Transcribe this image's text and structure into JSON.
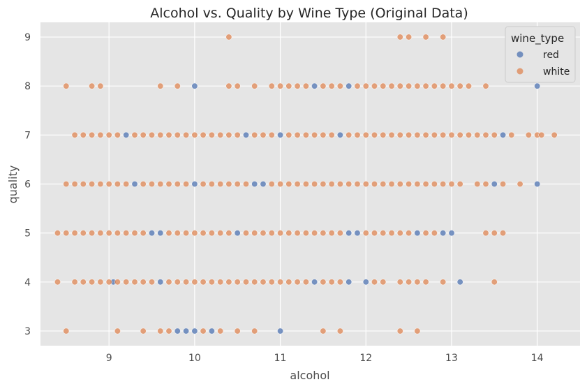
{
  "chart_data": {
    "type": "scatter",
    "title": "Alcohol vs. Quality by Wine Type (Original Data)",
    "xlabel": "alcohol",
    "ylabel": "quality",
    "xlim": [
      8.2,
      14.5
    ],
    "ylim": [
      2.7,
      9.3
    ],
    "x_ticks": [
      "9",
      "10",
      "11",
      "12",
      "13",
      "14"
    ],
    "y_ticks": [
      "3",
      "4",
      "5",
      "6",
      "7",
      "8",
      "9"
    ],
    "grid": true,
    "legend": {
      "title": "wine_type",
      "position": "top-right"
    },
    "series": [
      {
        "name": "red",
        "color": "#4c72b0",
        "points": [
          [
            9.9,
            3
          ],
          [
            10.0,
            3
          ],
          [
            10.2,
            3
          ],
          [
            9.8,
            3
          ],
          [
            11.0,
            3
          ],
          [
            9.05,
            4
          ],
          [
            9.6,
            4
          ],
          [
            11.4,
            4
          ],
          [
            11.8,
            4
          ],
          [
            12.0,
            4
          ],
          [
            13.1,
            4
          ],
          [
            9.6,
            5
          ],
          [
            9.5,
            5
          ],
          [
            10.5,
            5
          ],
          [
            11.9,
            5
          ],
          [
            12.6,
            5
          ],
          [
            12.9,
            5
          ],
          [
            13.0,
            5
          ],
          [
            11.8,
            5
          ],
          [
            9.3,
            6
          ],
          [
            10.0,
            6
          ],
          [
            10.7,
            6
          ],
          [
            10.8,
            6
          ],
          [
            13.5,
            6
          ],
          [
            14.0,
            6
          ],
          [
            9.2,
            7
          ],
          [
            10.6,
            7
          ],
          [
            11.0,
            7
          ],
          [
            11.7,
            7
          ],
          [
            13.6,
            7
          ],
          [
            10.0,
            8
          ],
          [
            11.4,
            8
          ],
          [
            11.8,
            8
          ],
          [
            14.0,
            8
          ]
        ]
      },
      {
        "name": "white",
        "color": "#dd8452",
        "points": [
          [
            8.5,
            3
          ],
          [
            9.1,
            3
          ],
          [
            9.4,
            3
          ],
          [
            9.6,
            3
          ],
          [
            9.7,
            3
          ],
          [
            10.1,
            3
          ],
          [
            10.3,
            3
          ],
          [
            10.5,
            3
          ],
          [
            10.7,
            3
          ],
          [
            11.5,
            3
          ],
          [
            11.7,
            3
          ],
          [
            12.4,
            3
          ],
          [
            12.6,
            3
          ],
          [
            8.4,
            4
          ],
          [
            8.6,
            4
          ],
          [
            8.7,
            4
          ],
          [
            8.8,
            4
          ],
          [
            8.9,
            4
          ],
          [
            9.0,
            4
          ],
          [
            9.1,
            4
          ],
          [
            9.2,
            4
          ],
          [
            9.3,
            4
          ],
          [
            9.4,
            4
          ],
          [
            9.5,
            4
          ],
          [
            9.7,
            4
          ],
          [
            9.8,
            4
          ],
          [
            9.9,
            4
          ],
          [
            10.0,
            4
          ],
          [
            10.1,
            4
          ],
          [
            10.2,
            4
          ],
          [
            10.3,
            4
          ],
          [
            10.4,
            4
          ],
          [
            10.5,
            4
          ],
          [
            10.6,
            4
          ],
          [
            10.7,
            4
          ],
          [
            10.8,
            4
          ],
          [
            10.9,
            4
          ],
          [
            11.0,
            4
          ],
          [
            11.1,
            4
          ],
          [
            11.2,
            4
          ],
          [
            11.3,
            4
          ],
          [
            11.5,
            4
          ],
          [
            11.6,
            4
          ],
          [
            11.7,
            4
          ],
          [
            12.1,
            4
          ],
          [
            12.2,
            4
          ],
          [
            12.4,
            4
          ],
          [
            12.5,
            4
          ],
          [
            12.6,
            4
          ],
          [
            12.7,
            4
          ],
          [
            12.9,
            4
          ],
          [
            13.5,
            4
          ],
          [
            8.4,
            5
          ],
          [
            8.5,
            5
          ],
          [
            8.6,
            5
          ],
          [
            8.7,
            5
          ],
          [
            8.8,
            5
          ],
          [
            8.9,
            5
          ],
          [
            9.0,
            5
          ],
          [
            9.1,
            5
          ],
          [
            9.2,
            5
          ],
          [
            9.3,
            5
          ],
          [
            9.4,
            5
          ],
          [
            9.7,
            5
          ],
          [
            9.8,
            5
          ],
          [
            9.9,
            5
          ],
          [
            10.0,
            5
          ],
          [
            10.1,
            5
          ],
          [
            10.2,
            5
          ],
          [
            10.3,
            5
          ],
          [
            10.4,
            5
          ],
          [
            10.6,
            5
          ],
          [
            10.7,
            5
          ],
          [
            10.8,
            5
          ],
          [
            10.9,
            5
          ],
          [
            11.0,
            5
          ],
          [
            11.1,
            5
          ],
          [
            11.2,
            5
          ],
          [
            11.3,
            5
          ],
          [
            11.4,
            5
          ],
          [
            11.5,
            5
          ],
          [
            11.6,
            5
          ],
          [
            11.7,
            5
          ],
          [
            12.0,
            5
          ],
          [
            12.1,
            5
          ],
          [
            12.2,
            5
          ],
          [
            12.3,
            5
          ],
          [
            12.4,
            5
          ],
          [
            12.5,
            5
          ],
          [
            12.7,
            5
          ],
          [
            12.8,
            5
          ],
          [
            13.4,
            5
          ],
          [
            13.5,
            5
          ],
          [
            13.6,
            5
          ],
          [
            8.5,
            6
          ],
          [
            8.6,
            6
          ],
          [
            8.7,
            6
          ],
          [
            8.8,
            6
          ],
          [
            8.9,
            6
          ],
          [
            9.0,
            6
          ],
          [
            9.1,
            6
          ],
          [
            9.2,
            6
          ],
          [
            9.4,
            6
          ],
          [
            9.5,
            6
          ],
          [
            9.6,
            6
          ],
          [
            9.7,
            6
          ],
          [
            9.8,
            6
          ],
          [
            9.9,
            6
          ],
          [
            10.1,
            6
          ],
          [
            10.2,
            6
          ],
          [
            10.3,
            6
          ],
          [
            10.4,
            6
          ],
          [
            10.5,
            6
          ],
          [
            10.6,
            6
          ],
          [
            10.9,
            6
          ],
          [
            11.0,
            6
          ],
          [
            11.1,
            6
          ],
          [
            11.2,
            6
          ],
          [
            11.3,
            6
          ],
          [
            11.4,
            6
          ],
          [
            11.5,
            6
          ],
          [
            11.6,
            6
          ],
          [
            11.7,
            6
          ],
          [
            11.8,
            6
          ],
          [
            11.9,
            6
          ],
          [
            12.0,
            6
          ],
          [
            12.1,
            6
          ],
          [
            12.2,
            6
          ],
          [
            12.3,
            6
          ],
          [
            12.4,
            6
          ],
          [
            12.5,
            6
          ],
          [
            12.6,
            6
          ],
          [
            12.7,
            6
          ],
          [
            12.8,
            6
          ],
          [
            12.9,
            6
          ],
          [
            13.0,
            6
          ],
          [
            13.1,
            6
          ],
          [
            13.3,
            6
          ],
          [
            13.4,
            6
          ],
          [
            13.6,
            6
          ],
          [
            13.8,
            6
          ],
          [
            8.6,
            7
          ],
          [
            8.7,
            7
          ],
          [
            8.8,
            7
          ],
          [
            8.9,
            7
          ],
          [
            9.0,
            7
          ],
          [
            9.1,
            7
          ],
          [
            9.3,
            7
          ],
          [
            9.4,
            7
          ],
          [
            9.5,
            7
          ],
          [
            9.6,
            7
          ],
          [
            9.7,
            7
          ],
          [
            9.8,
            7
          ],
          [
            9.9,
            7
          ],
          [
            10.0,
            7
          ],
          [
            10.1,
            7
          ],
          [
            10.2,
            7
          ],
          [
            10.3,
            7
          ],
          [
            10.4,
            7
          ],
          [
            10.5,
            7
          ],
          [
            10.7,
            7
          ],
          [
            10.8,
            7
          ],
          [
            10.9,
            7
          ],
          [
            11.1,
            7
          ],
          [
            11.2,
            7
          ],
          [
            11.3,
            7
          ],
          [
            11.4,
            7
          ],
          [
            11.5,
            7
          ],
          [
            11.6,
            7
          ],
          [
            11.8,
            7
          ],
          [
            11.9,
            7
          ],
          [
            12.0,
            7
          ],
          [
            12.1,
            7
          ],
          [
            12.2,
            7
          ],
          [
            12.3,
            7
          ],
          [
            12.4,
            7
          ],
          [
            12.5,
            7
          ],
          [
            12.6,
            7
          ],
          [
            12.7,
            7
          ],
          [
            12.8,
            7
          ],
          [
            12.9,
            7
          ],
          [
            13.0,
            7
          ],
          [
            13.1,
            7
          ],
          [
            13.2,
            7
          ],
          [
            13.3,
            7
          ],
          [
            13.4,
            7
          ],
          [
            13.5,
            7
          ],
          [
            13.7,
            7
          ],
          [
            13.9,
            7
          ],
          [
            14.0,
            7
          ],
          [
            14.05,
            7
          ],
          [
            14.2,
            7
          ],
          [
            8.5,
            8
          ],
          [
            8.8,
            8
          ],
          [
            8.9,
            8
          ],
          [
            9.6,
            8
          ],
          [
            9.8,
            8
          ],
          [
            10.4,
            8
          ],
          [
            10.5,
            8
          ],
          [
            10.7,
            8
          ],
          [
            10.9,
            8
          ],
          [
            11.0,
            8
          ],
          [
            11.1,
            8
          ],
          [
            11.2,
            8
          ],
          [
            11.3,
            8
          ],
          [
            11.5,
            8
          ],
          [
            11.6,
            8
          ],
          [
            11.7,
            8
          ],
          [
            11.9,
            8
          ],
          [
            12.0,
            8
          ],
          [
            12.1,
            8
          ],
          [
            12.2,
            8
          ],
          [
            12.3,
            8
          ],
          [
            12.4,
            8
          ],
          [
            12.5,
            8
          ],
          [
            12.6,
            8
          ],
          [
            12.7,
            8
          ],
          [
            12.8,
            8
          ],
          [
            12.9,
            8
          ],
          [
            13.0,
            8
          ],
          [
            13.1,
            8
          ],
          [
            13.2,
            8
          ],
          [
            13.4,
            8
          ],
          [
            10.4,
            9
          ],
          [
            12.4,
            9
          ],
          [
            12.5,
            9
          ],
          [
            12.7,
            9
          ],
          [
            12.9,
            9
          ]
        ]
      }
    ]
  }
}
